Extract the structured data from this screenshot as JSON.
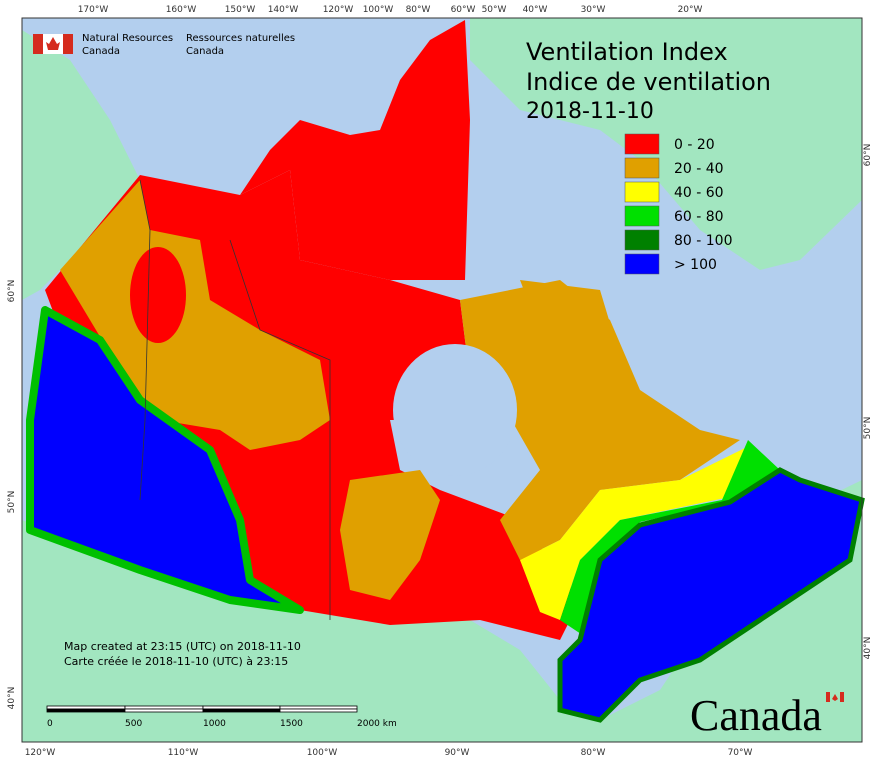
{
  "header": {
    "agency_en_1": "Natural Resources",
    "agency_en_2": "Canada",
    "agency_fr_1": "Ressources naturelles",
    "agency_fr_2": "Canada"
  },
  "title": {
    "line1": "Ventilation Index",
    "line2": "Indice de ventilation",
    "date": "2018-11-10"
  },
  "legend": [
    {
      "label": "0 - 20",
      "color": "#ff0000"
    },
    {
      "label": "20 - 40",
      "color": "#e0a000"
    },
    {
      "label": "40 - 60",
      "color": "#ffff00"
    },
    {
      "label": "60 - 80",
      "color": "#00e000"
    },
    {
      "label": "80 - 100",
      "color": "#008000"
    },
    {
      "label": "> 100",
      "color": "#0000ff"
    }
  ],
  "notes": [
    "Map created at 23:15 (UTC) on 2018-11-10",
    "Carte créée le 2018-11-10 (UTC) à 23:15"
  ],
  "scale_bar": {
    "labels": [
      "0",
      "500",
      "1000",
      "1500",
      "2000 km"
    ]
  },
  "graticule": {
    "top": [
      "170°W",
      "160°W",
      "150°W",
      "140°W",
      "120°W",
      "100°W",
      "80°W",
      "60°W",
      "50°W",
      "40°W",
      "30°W",
      "20°W"
    ],
    "bottom": [
      "120°W",
      "110°W",
      "100°W",
      "90°W",
      "80°W",
      "70°W"
    ],
    "left": [
      "60°N",
      "50°N",
      "40°N"
    ],
    "right": [
      "60°N",
      "50°N",
      "40°N"
    ]
  },
  "wordmark": "Canada"
}
